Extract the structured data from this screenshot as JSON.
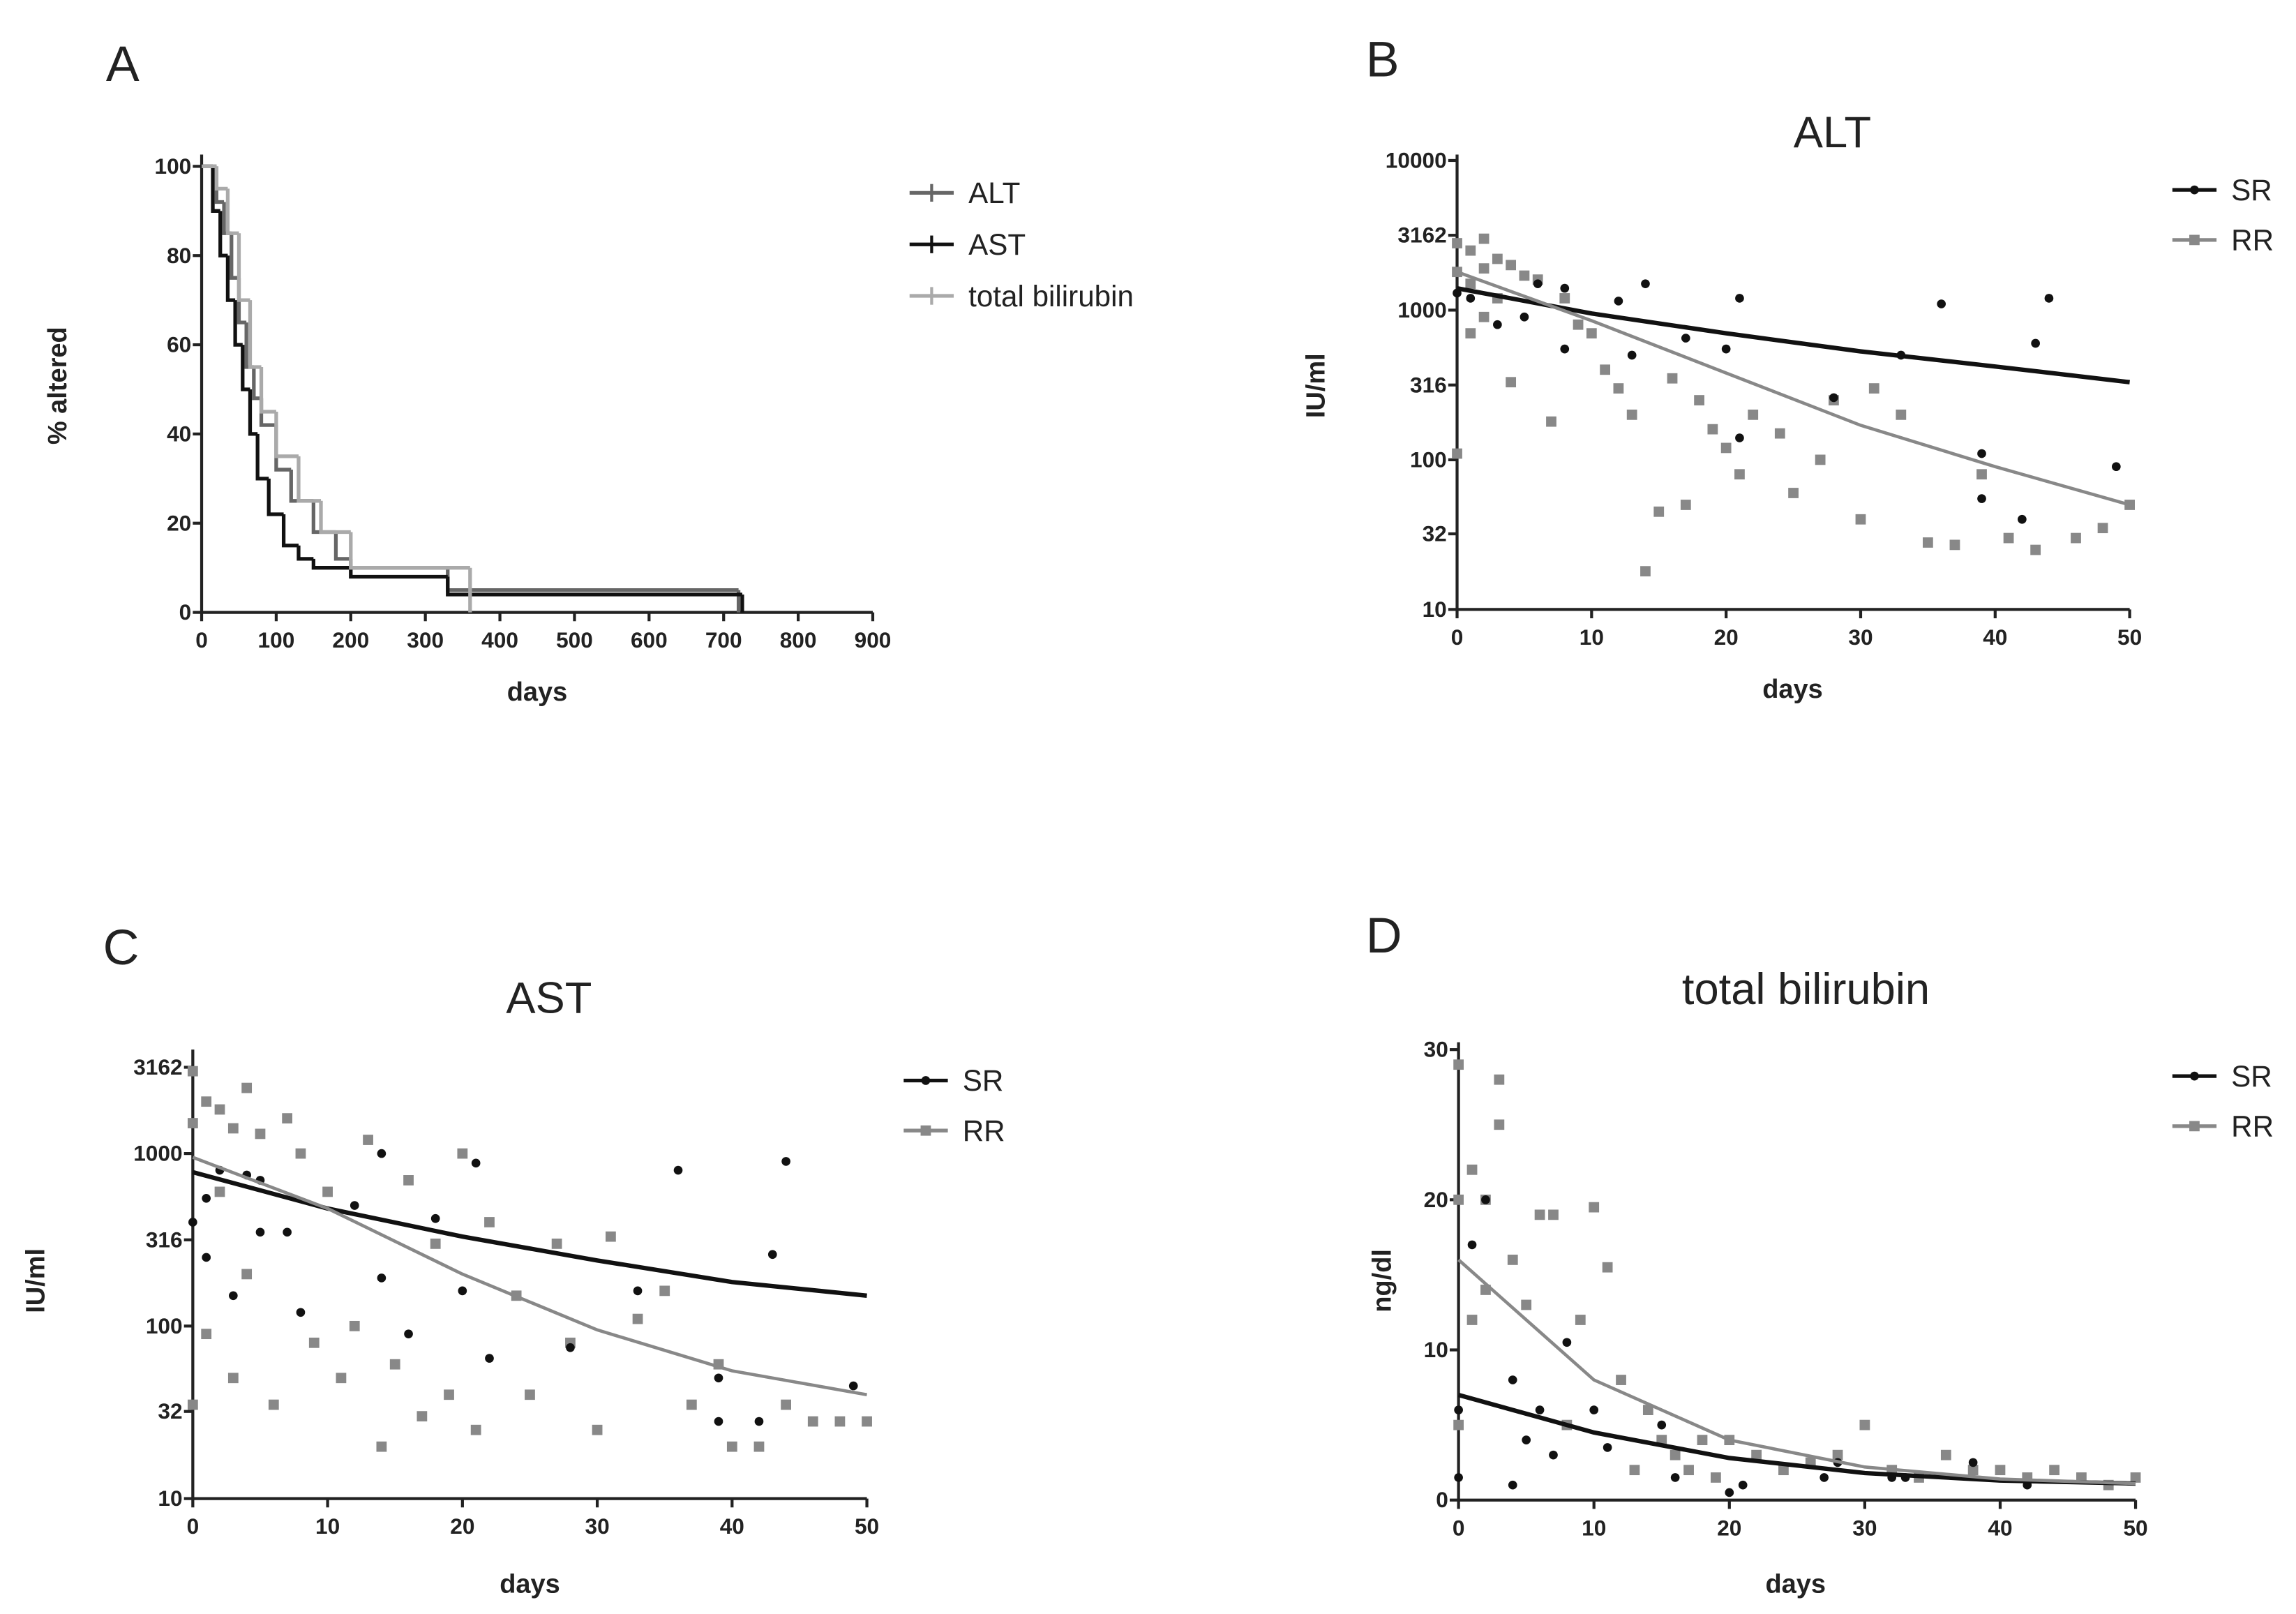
{
  "chart_data": [
    {
      "type": "step",
      "panel": "A",
      "xlabel": "days",
      "ylabel": "% altered",
      "xlim": [
        0,
        900
      ],
      "xticks": [
        0,
        100,
        200,
        300,
        400,
        500,
        600,
        700,
        800,
        900
      ],
      "ylim": [
        0,
        100
      ],
      "yticks": [
        0,
        20,
        40,
        60,
        80,
        100
      ],
      "series": [
        {
          "name": "ALT",
          "color": "#666666",
          "x": [
            0,
            20,
            30,
            40,
            50,
            60,
            70,
            80,
            100,
            120,
            150,
            180,
            200,
            330,
            720
          ],
          "values": [
            100,
            92,
            85,
            75,
            65,
            55,
            48,
            42,
            32,
            25,
            18,
            12,
            10,
            5,
            0
          ]
        },
        {
          "name": "AST",
          "color": "#111111",
          "x": [
            0,
            15,
            25,
            35,
            45,
            55,
            65,
            75,
            90,
            110,
            130,
            150,
            200,
            330,
            725
          ],
          "values": [
            100,
            90,
            80,
            70,
            60,
            50,
            40,
            30,
            22,
            15,
            12,
            10,
            8,
            4,
            0
          ]
        },
        {
          "name": "total bilirubin",
          "color": "#aaaaaa",
          "x": [
            0,
            20,
            35,
            50,
            65,
            80,
            100,
            130,
            160,
            200,
            360
          ],
          "values": [
            100,
            95,
            85,
            70,
            55,
            45,
            35,
            25,
            18,
            10,
            0
          ]
        }
      ]
    },
    {
      "type": "scatter",
      "panel": "B",
      "title": "ALT",
      "xlabel": "days",
      "ylabel": "IU/ml",
      "log_y": true,
      "xlim": [
        0,
        50
      ],
      "xticks": [
        0,
        10,
        20,
        30,
        40,
        50
      ],
      "ylim": [
        10,
        10000
      ],
      "yticks": [
        10,
        32,
        100,
        316,
        1000,
        3162,
        10000
      ],
      "series": [
        {
          "name": "SR",
          "color": "#111111",
          "x": [
            0,
            1,
            3,
            5,
            6,
            8,
            8,
            12,
            13,
            14,
            17,
            20,
            21,
            21,
            28,
            33,
            36,
            39,
            39,
            42,
            43,
            44,
            49
          ],
          "values": [
            1300,
            1200,
            800,
            900,
            1500,
            550,
            1400,
            1150,
            500,
            1500,
            650,
            550,
            1200,
            140,
            260,
            500,
            1100,
            110,
            55,
            40,
            600,
            1200,
            90
          ]
        },
        {
          "name": "RR",
          "color": "#888888",
          "x": [
            0,
            0,
            0,
            1,
            1,
            1,
            2,
            2,
            2,
            3,
            3,
            4,
            4,
            5,
            6,
            7,
            8,
            9,
            10,
            11,
            12,
            13,
            14,
            15,
            16,
            17,
            18,
            19,
            20,
            21,
            22,
            24,
            25,
            27,
            28,
            30,
            31,
            33,
            35,
            37,
            39,
            41,
            43,
            46,
            48,
            50
          ],
          "values": [
            2800,
            1800,
            110,
            2500,
            1500,
            700,
            3000,
            1900,
            900,
            2200,
            1200,
            2000,
            330,
            1700,
            1600,
            180,
            1200,
            800,
            700,
            400,
            300,
            200,
            18,
            45,
            350,
            50,
            250,
            160,
            120,
            80,
            200,
            150,
            60,
            100,
            250,
            40,
            300,
            200,
            28,
            27,
            80,
            30,
            25,
            30,
            35,
            50
          ]
        }
      ],
      "fits": [
        {
          "color": "#111111",
          "x": [
            0,
            10,
            20,
            30,
            40,
            50
          ],
          "values": [
            1400,
            950,
            700,
            530,
            420,
            330
          ]
        },
        {
          "color": "#888888",
          "x": [
            0,
            10,
            20,
            30,
            40,
            50
          ],
          "values": [
            1800,
            850,
            380,
            170,
            90,
            50
          ]
        }
      ]
    },
    {
      "type": "scatter",
      "panel": "C",
      "title": "AST",
      "xlabel": "days",
      "ylabel": "IU/ml",
      "log_y": true,
      "xlim": [
        0,
        50
      ],
      "xticks": [
        0,
        10,
        20,
        30,
        40,
        50
      ],
      "ylim": [
        10,
        3162
      ],
      "yticks": [
        10,
        32,
        100,
        316,
        1000,
        3162
      ],
      "series": [
        {
          "name": "SR",
          "color": "#111111",
          "x": [
            0,
            1,
            1,
            2,
            3,
            4,
            5,
            5,
            7,
            8,
            12,
            14,
            14,
            16,
            18,
            20,
            21,
            22,
            28,
            33,
            36,
            39,
            39,
            42,
            43,
            44,
            49
          ],
          "values": [
            400,
            550,
            250,
            800,
            150,
            750,
            350,
            700,
            350,
            120,
            500,
            1000,
            190,
            90,
            420,
            160,
            880,
            65,
            75,
            160,
            800,
            50,
            28,
            28,
            260,
            900,
            45
          ]
        },
        {
          "name": "RR",
          "color": "#888888",
          "x": [
            0,
            0,
            0,
            1,
            1,
            2,
            2,
            3,
            3,
            4,
            4,
            5,
            6,
            7,
            8,
            9,
            10,
            11,
            12,
            13,
            14,
            15,
            16,
            17,
            18,
            19,
            20,
            21,
            22,
            24,
            25,
            27,
            28,
            30,
            31,
            33,
            35,
            37,
            39,
            40,
            42,
            44,
            46,
            48,
            50
          ],
          "values": [
            3000,
            1500,
            35,
            2000,
            90,
            1800,
            600,
            1400,
            50,
            2400,
            200,
            1300,
            35,
            1600,
            1000,
            80,
            600,
            50,
            100,
            1200,
            20,
            60,
            700,
            30,
            300,
            40,
            1000,
            25,
            400,
            150,
            40,
            300,
            80,
            25,
            330,
            110,
            160,
            35,
            60,
            20,
            20,
            35,
            28,
            28,
            28
          ]
        }
      ],
      "fits": [
        {
          "color": "#111111",
          "x": [
            0,
            10,
            20,
            30,
            40,
            50
          ],
          "values": [
            780,
            480,
            330,
            240,
            180,
            150
          ]
        },
        {
          "color": "#888888",
          "x": [
            0,
            10,
            20,
            30,
            40,
            50
          ],
          "values": [
            950,
            480,
            200,
            95,
            55,
            40
          ]
        }
      ]
    },
    {
      "type": "scatter",
      "panel": "D",
      "title": "total bilirubin",
      "xlabel": "days",
      "ylabel": "ng/dl",
      "xlim": [
        0,
        50
      ],
      "xticks": [
        0,
        10,
        20,
        30,
        40,
        50
      ],
      "ylim": [
        0,
        30
      ],
      "yticks": [
        0,
        10,
        20,
        30
      ],
      "series": [
        {
          "name": "SR",
          "color": "#111111",
          "x": [
            0,
            0,
            1,
            2,
            4,
            4,
            5,
            6,
            7,
            8,
            10,
            11,
            15,
            16,
            20,
            21,
            27,
            28,
            32,
            33,
            38,
            42
          ],
          "values": [
            1.5,
            6,
            17,
            20,
            8,
            1,
            4,
            6,
            3,
            10.5,
            6,
            3.5,
            5,
            1.5,
            0.5,
            1,
            1.5,
            2.5,
            1.5,
            1.5,
            2.5,
            1
          ]
        },
        {
          "name": "RR",
          "color": "#888888",
          "x": [
            0,
            0,
            0,
            1,
            1,
            2,
            2,
            3,
            3,
            4,
            5,
            6,
            7,
            8,
            9,
            10,
            11,
            12,
            13,
            14,
            15,
            16,
            17,
            18,
            19,
            20,
            22,
            24,
            26,
            28,
            30,
            32,
            34,
            36,
            38,
            40,
            42,
            44,
            46,
            48,
            50
          ],
          "values": [
            29,
            20,
            5,
            22,
            12,
            20,
            14,
            28,
            25,
            16,
            13,
            19,
            19,
            5,
            12,
            19.5,
            15.5,
            8,
            2,
            6,
            4,
            3,
            2,
            4,
            1.5,
            4,
            3,
            2,
            2.5,
            3,
            5,
            2,
            1.5,
            3,
            2,
            2,
            1.5,
            2,
            1.5,
            1,
            1.5
          ]
        }
      ],
      "fits": [
        {
          "color": "#111111",
          "x": [
            0,
            10,
            20,
            30,
            40,
            50
          ],
          "values": [
            7,
            4.5,
            2.8,
            1.8,
            1.3,
            1.1
          ]
        },
        {
          "color": "#888888",
          "x": [
            0,
            10,
            20,
            30,
            40,
            50
          ],
          "values": [
            16,
            8,
            4,
            2.2,
            1.4,
            1.1
          ]
        }
      ]
    }
  ]
}
